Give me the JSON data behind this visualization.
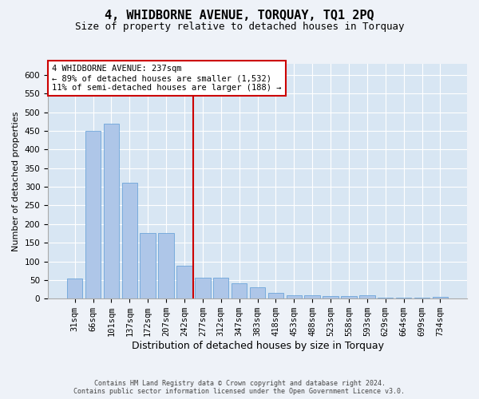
{
  "title": "4, WHIDBORNE AVENUE, TORQUAY, TQ1 2PQ",
  "subtitle": "Size of property relative to detached houses in Torquay",
  "xlabel": "Distribution of detached houses by size in Torquay",
  "ylabel": "Number of detached properties",
  "footer_line1": "Contains HM Land Registry data © Crown copyright and database right 2024.",
  "footer_line2": "Contains public sector information licensed under the Open Government Licence v3.0.",
  "categories": [
    "31sqm",
    "66sqm",
    "101sqm",
    "137sqm",
    "172sqm",
    "207sqm",
    "242sqm",
    "277sqm",
    "312sqm",
    "347sqm",
    "383sqm",
    "418sqm",
    "453sqm",
    "488sqm",
    "523sqm",
    "558sqm",
    "593sqm",
    "629sqm",
    "664sqm",
    "699sqm",
    "734sqm"
  ],
  "values": [
    53,
    450,
    470,
    310,
    175,
    175,
    88,
    57,
    57,
    42,
    30,
    15,
    8,
    8,
    6,
    6,
    8,
    2,
    2,
    2,
    4
  ],
  "bar_color": "#aec6e8",
  "bar_edge_color": "#5b9bd5",
  "marker_index": 6,
  "marker_color": "#cc0000",
  "annotation_line1": "4 WHIDBORNE AVENUE: 237sqm",
  "annotation_line2": "← 89% of detached houses are smaller (1,532)",
  "annotation_line3": "11% of semi-detached houses are larger (188) →",
  "annotation_box_color": "#ffffff",
  "annotation_box_edge_color": "#cc0000",
  "ylim": [
    0,
    630
  ],
  "yticks": [
    0,
    50,
    100,
    150,
    200,
    250,
    300,
    350,
    400,
    450,
    500,
    550,
    600
  ],
  "background_color": "#eef2f8",
  "plot_background_color": "#d8e6f3",
  "grid_color": "#ffffff",
  "title_fontsize": 11,
  "subtitle_fontsize": 9,
  "tick_fontsize": 7.5,
  "ylabel_fontsize": 8,
  "xlabel_fontsize": 9,
  "annotation_fontsize": 7.5,
  "footer_fontsize": 6
}
